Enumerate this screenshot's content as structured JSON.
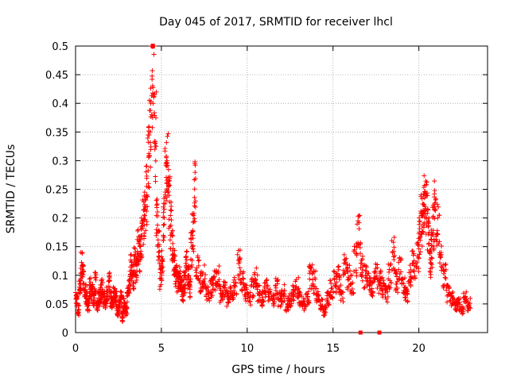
{
  "chart_data": {
    "type": "scatter",
    "title": "Day 045 of 2017, SRMTID for receiver lhcl",
    "xlabel": "GPS time / hours",
    "ylabel": "SRMTID / TECUs",
    "xlim": [
      0,
      24
    ],
    "ylim": [
      0,
      0.5
    ],
    "xticks": [
      "0",
      "5",
      "10",
      "15",
      "20"
    ],
    "yticks": [
      "0",
      "0.05",
      "0.1",
      "0.15",
      "0.2",
      "0.25",
      "0.3",
      "0.35",
      "0.4",
      "0.45",
      "0.5"
    ],
    "grid": true,
    "marker": "+",
    "color": "#ff0000",
    "series": [
      {
        "x": [
          0.0,
          0.1,
          0.2,
          0.3,
          0.4,
          0.5,
          0.6,
          0.7,
          0.8,
          0.9,
          1.0,
          1.1,
          1.2,
          1.3,
          1.4,
          1.5,
          1.6,
          1.7,
          1.8,
          1.9,
          2.0,
          2.1,
          2.2,
          2.3,
          2.4,
          2.5,
          2.6,
          2.7,
          2.8,
          2.9,
          3.0,
          3.1,
          3.2,
          3.3,
          3.4,
          3.5,
          3.6,
          3.7,
          3.8,
          3.9,
          4.0,
          4.1,
          4.2,
          4.3,
          4.4,
          4.5,
          4.6,
          4.7,
          4.8,
          4.9,
          5.0,
          5.1,
          5.2,
          5.3,
          5.4,
          5.5,
          5.6,
          5.7,
          5.8,
          5.9,
          6.0,
          6.1,
          6.2,
          6.3,
          6.4,
          6.5,
          6.6,
          6.7,
          6.8,
          6.9,
          7.0,
          7.2,
          7.4,
          7.6,
          7.8,
          8.0,
          8.2,
          8.4,
          8.6,
          8.8,
          9.0,
          9.2,
          9.4,
          9.6,
          9.8,
          10.0,
          10.2,
          10.4,
          10.6,
          10.8,
          11.0,
          11.2,
          11.4,
          11.6,
          11.8,
          12.0,
          12.2,
          12.4,
          12.6,
          12.8,
          13.0,
          13.2,
          13.4,
          13.6,
          13.8,
          14.0,
          14.2,
          14.4,
          14.6,
          14.8,
          15.0,
          15.2,
          15.4,
          15.6,
          15.8,
          16.0,
          16.2,
          16.4,
          16.6,
          16.8,
          17.0,
          17.2,
          17.4,
          17.6,
          17.8,
          18.0,
          18.2,
          18.4,
          18.6,
          18.8,
          19.0,
          19.2,
          19.4,
          19.6,
          19.8,
          20.0,
          20.1,
          20.2,
          20.3,
          20.4,
          20.5,
          20.6,
          20.7,
          20.8,
          20.9,
          21.0,
          21.2,
          21.4,
          21.6,
          21.8,
          22.0,
          22.2,
          22.4,
          22.6,
          22.8
        ],
        "y": [
          0.06,
          0.04,
          0.08,
          0.12,
          0.1,
          0.07,
          0.06,
          0.05,
          0.08,
          0.07,
          0.06,
          0.09,
          0.05,
          0.06,
          0.07,
          0.08,
          0.06,
          0.05,
          0.07,
          0.09,
          0.06,
          0.05,
          0.07,
          0.06,
          0.04,
          0.05,
          0.06,
          0.03,
          0.05,
          0.04,
          0.07,
          0.09,
          0.12,
          0.1,
          0.13,
          0.11,
          0.15,
          0.14,
          0.17,
          0.2,
          0.22,
          0.25,
          0.3,
          0.38,
          0.45,
          0.47,
          0.35,
          0.2,
          0.15,
          0.1,
          0.12,
          0.2,
          0.28,
          0.3,
          0.24,
          0.19,
          0.15,
          0.12,
          0.1,
          0.09,
          0.1,
          0.08,
          0.07,
          0.09,
          0.12,
          0.1,
          0.08,
          0.15,
          0.18,
          0.25,
          0.12,
          0.09,
          0.1,
          0.07,
          0.08,
          0.09,
          0.1,
          0.07,
          0.08,
          0.06,
          0.07,
          0.08,
          0.12,
          0.09,
          0.07,
          0.06,
          0.08,
          0.1,
          0.07,
          0.06,
          0.08,
          0.07,
          0.06,
          0.08,
          0.06,
          0.07,
          0.05,
          0.06,
          0.07,
          0.08,
          0.06,
          0.05,
          0.06,
          0.1,
          0.09,
          0.07,
          0.05,
          0.04,
          0.06,
          0.08,
          0.09,
          0.1,
          0.07,
          0.12,
          0.1,
          0.09,
          0.13,
          0.17,
          0.12,
          0.1,
          0.09,
          0.08,
          0.1,
          0.09,
          0.08,
          0.07,
          0.1,
          0.14,
          0.09,
          0.11,
          0.08,
          0.07,
          0.1,
          0.12,
          0.14,
          0.17,
          0.2,
          0.23,
          0.24,
          0.22,
          0.18,
          0.12,
          0.15,
          0.19,
          0.22,
          0.2,
          0.14,
          0.1,
          0.07,
          0.06,
          0.05,
          0.05,
          0.04,
          0.06,
          0.05
        ]
      }
    ],
    "outliers_at_zero": {
      "x": [
        16.6,
        17.7
      ],
      "y": [
        0.0,
        0.0
      ]
    }
  }
}
